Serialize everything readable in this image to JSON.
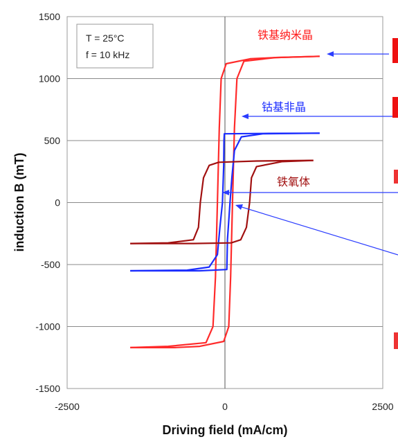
{
  "chart_data": {
    "type": "line",
    "xlabel": "Driving field (mA/cm)",
    "ylabel": "induction B (mT)",
    "xlim": [
      -2500,
      2500
    ],
    "ylim": [
      -1500,
      1500
    ],
    "x_ticks": [
      "-2500",
      "0",
      "2500"
    ],
    "y_ticks": [
      "1500",
      "1000",
      "500",
      "0",
      "-500",
      "-1000",
      "-1500"
    ],
    "grid": true,
    "legend_box": [
      "T = 25°C",
      "f = 10 kHz"
    ],
    "series": [
      {
        "name": "铁基纳米晶",
        "color": "#ff2a2a",
        "ascending": [
          [
            -1500,
            -1170
          ],
          [
            -900,
            -1160
          ],
          [
            -300,
            -1130
          ],
          [
            -190,
            -1000
          ],
          [
            -150,
            -600
          ],
          [
            -120,
            0
          ],
          [
            -90,
            600
          ],
          [
            -60,
            1000
          ],
          [
            20,
            1120
          ],
          [
            400,
            1160
          ],
          [
            800,
            1170
          ],
          [
            1500,
            1180
          ]
        ],
        "descending": [
          [
            1500,
            1180
          ],
          [
            800,
            1170
          ],
          [
            300,
            1140
          ],
          [
            190,
            1000
          ],
          [
            150,
            600
          ],
          [
            120,
            0
          ],
          [
            90,
            -600
          ],
          [
            60,
            -1000
          ],
          [
            -20,
            -1120
          ],
          [
            -400,
            -1160
          ],
          [
            -800,
            -1170
          ],
          [
            -1500,
            -1170
          ]
        ]
      },
      {
        "name": "钴基非晶",
        "color": "#1a2cff",
        "ascending": [
          [
            -1500,
            -550
          ],
          [
            -600,
            -545
          ],
          [
            -250,
            -520
          ],
          [
            -120,
            -420
          ],
          [
            -80,
            -200
          ],
          [
            -40,
            0
          ],
          [
            -20,
            300
          ],
          [
            -15,
            500
          ],
          [
            -10,
            555
          ],
          [
            700,
            558
          ],
          [
            1500,
            560
          ]
        ],
        "descending": [
          [
            1500,
            560
          ],
          [
            600,
            555
          ],
          [
            260,
            530
          ],
          [
            150,
            420
          ],
          [
            110,
            200
          ],
          [
            80,
            0
          ],
          [
            40,
            -300
          ],
          [
            30,
            -540
          ],
          [
            -400,
            -550
          ],
          [
            -1500,
            -550
          ]
        ]
      },
      {
        "name": "铁氧体",
        "color": "#a11010",
        "ascending": [
          [
            -1500,
            -330
          ],
          [
            -900,
            -325
          ],
          [
            -500,
            -300
          ],
          [
            -420,
            -200
          ],
          [
            -390,
            0
          ],
          [
            -340,
            200
          ],
          [
            -250,
            300
          ],
          [
            -100,
            325
          ],
          [
            500,
            335
          ],
          [
            1400,
            340
          ]
        ],
        "descending": [
          [
            1400,
            340
          ],
          [
            900,
            330
          ],
          [
            500,
            290
          ],
          [
            420,
            200
          ],
          [
            390,
            0
          ],
          [
            340,
            -200
          ],
          [
            250,
            -300
          ],
          [
            100,
            -325
          ],
          [
            -500,
            -330
          ],
          [
            -1500,
            -330
          ]
        ]
      }
    ]
  }
}
